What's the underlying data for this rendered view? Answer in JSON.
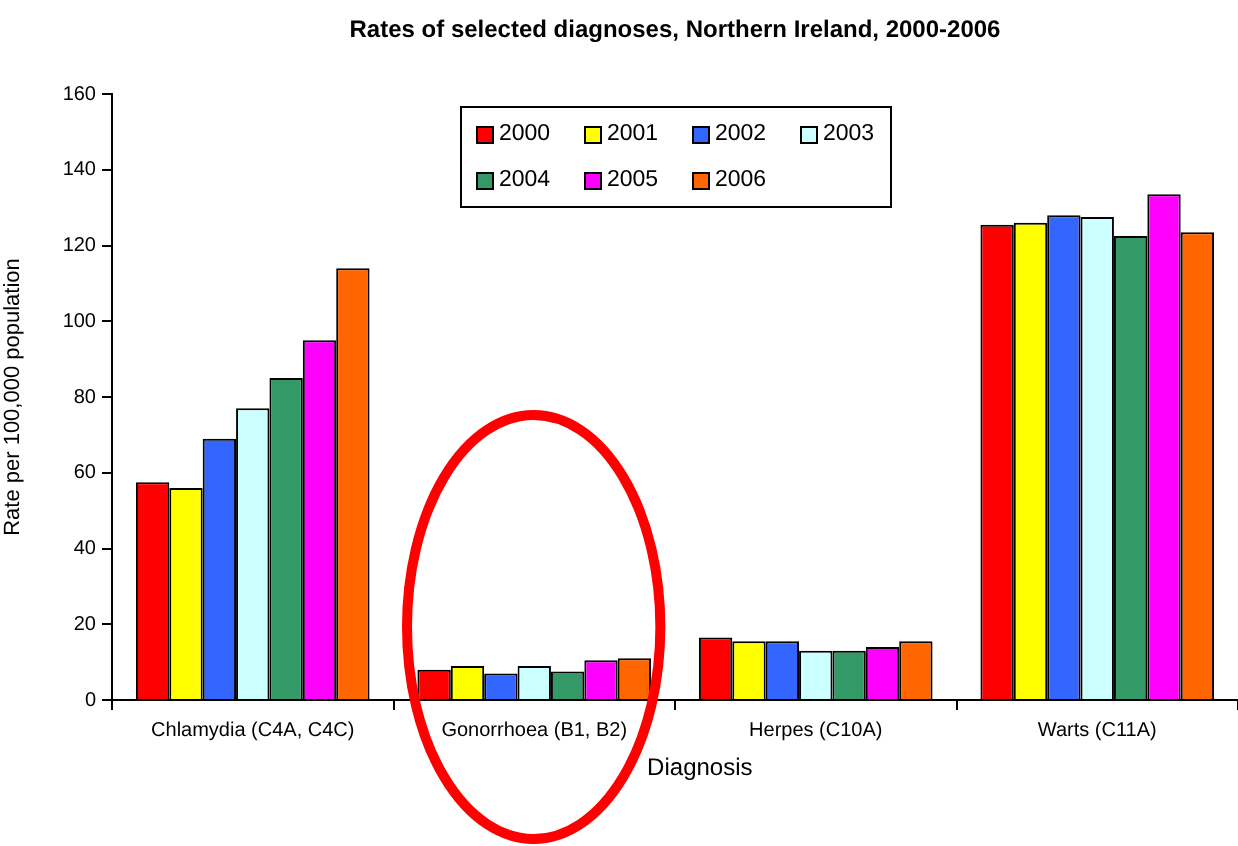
{
  "chart_data": {
    "type": "bar",
    "title": "Rates of selected diagnoses, Northern Ireland, 2000-2006",
    "xlabel": "Diagnosis",
    "ylabel": "Rate per 100,000 population",
    "categories": [
      "Chlamydia (C4A, C4C)",
      "Gonorrhoea (B1, B2)",
      "Herpes (C10A)",
      "Warts (C11A)"
    ],
    "series": [
      {
        "name": "2000",
        "color": "#ff0000",
        "values": [
          57.5,
          8,
          16.5,
          125.5
        ]
      },
      {
        "name": "2001",
        "color": "#ffff00",
        "values": [
          56,
          9,
          15.5,
          126
        ]
      },
      {
        "name": "2002",
        "color": "#3366ff",
        "values": [
          69,
          7,
          15.5,
          128
        ]
      },
      {
        "name": "2003",
        "color": "#ccffff",
        "values": [
          77,
          9,
          13,
          127.5
        ]
      },
      {
        "name": "2004",
        "color": "#339966",
        "values": [
          85,
          7.5,
          13,
          122.5
        ]
      },
      {
        "name": "2005",
        "color": "#ff00ff",
        "values": [
          95,
          10.5,
          14,
          133.5
        ]
      },
      {
        "name": "2006",
        "color": "#ff6600",
        "values": [
          114,
          11,
          15.5,
          123.5
        ]
      }
    ],
    "ylim": [
      0,
      160
    ],
    "yticks": [
      0,
      20,
      40,
      60,
      80,
      100,
      120,
      140,
      160
    ],
    "grid": false,
    "legend": "top"
  }
}
